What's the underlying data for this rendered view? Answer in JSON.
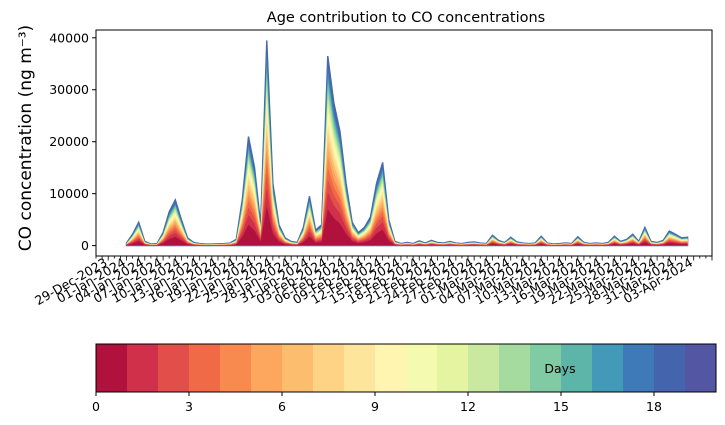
{
  "chart_data": {
    "type": "area",
    "title": "Age contribution to CO concentrations",
    "ylabel": "CO concentration (ng m⁻³)",
    "xlabel": "",
    "ylim": [
      -2000,
      41500
    ],
    "yticks": [
      0,
      10000,
      20000,
      30000,
      40000
    ],
    "ytick_labels": [
      "0",
      "10000",
      "20000",
      "30000",
      "40000"
    ],
    "x_start": "2023-12-27",
    "x_end": "2024-04-06",
    "x_data_start": "2024-01-01",
    "x_data_end": "2024-04-02",
    "xtick_labels": [
      "29-Dec-2023",
      "01-Jan-2024",
      "04-Jan-2024",
      "07-Jan-2024",
      "10-Jan-2024",
      "13-Jan-2024",
      "16-Jan-2024",
      "19-Jan-2024",
      "22-Jan-2024",
      "25-Jan-2024",
      "28-Jan-2024",
      "31-Jan-2024",
      "03-Feb-2024",
      "06-Feb-2024",
      "09-Feb-2024",
      "12-Feb-2024",
      "15-Feb-2024",
      "18-Feb-2024",
      "21-Feb-2024",
      "24-Feb-2024",
      "27-Feb-2024",
      "01-Mar-2024",
      "04-Mar-2024",
      "07-Mar-2024",
      "10-Mar-2024",
      "13-Mar-2024",
      "16-Mar-2024",
      "19-Mar-2024",
      "22-Mar-2024",
      "25-Mar-2024",
      "28-Mar-2024",
      "31-Mar-2024",
      "03-Apr-2024"
    ],
    "total_concentration": [
      [
        "2024-01-01",
        500
      ],
      [
        "2024-01-02",
        2200
      ],
      [
        "2024-01-03",
        4500
      ],
      [
        "2024-01-04",
        800
      ],
      [
        "2024-01-05",
        300
      ],
      [
        "2024-01-06",
        400
      ],
      [
        "2024-01-07",
        2500
      ],
      [
        "2024-01-08",
        6500
      ],
      [
        "2024-01-09",
        8800
      ],
      [
        "2024-01-10",
        5000
      ],
      [
        "2024-01-11",
        1500
      ],
      [
        "2024-01-12",
        600
      ],
      [
        "2024-01-13",
        400
      ],
      [
        "2024-01-14",
        300
      ],
      [
        "2024-01-15",
        300
      ],
      [
        "2024-01-16",
        350
      ],
      [
        "2024-01-17",
        400
      ],
      [
        "2024-01-18",
        500
      ],
      [
        "2024-01-19",
        1200
      ],
      [
        "2024-01-20",
        9000
      ],
      [
        "2024-01-21",
        21000
      ],
      [
        "2024-01-22",
        15000
      ],
      [
        "2024-01-23",
        4000
      ],
      [
        "2024-01-24",
        39500
      ],
      [
        "2024-01-25",
        12000
      ],
      [
        "2024-01-26",
        4000
      ],
      [
        "2024-01-27",
        1500
      ],
      [
        "2024-01-28",
        800
      ],
      [
        "2024-01-29",
        600
      ],
      [
        "2024-01-30",
        3500
      ],
      [
        "2024-01-31",
        9500
      ],
      [
        "2024-02-01",
        3000
      ],
      [
        "2024-02-02",
        4000
      ],
      [
        "2024-02-03",
        36500
      ],
      [
        "2024-02-04",
        27500
      ],
      [
        "2024-02-05",
        22000
      ],
      [
        "2024-02-06",
        12000
      ],
      [
        "2024-02-07",
        4500
      ],
      [
        "2024-02-08",
        2500
      ],
      [
        "2024-02-09",
        3500
      ],
      [
        "2024-02-10",
        5500
      ],
      [
        "2024-02-11",
        12000
      ],
      [
        "2024-02-12",
        16000
      ],
      [
        "2024-02-13",
        5000
      ],
      [
        "2024-02-14",
        800
      ],
      [
        "2024-02-15",
        400
      ],
      [
        "2024-02-16",
        600
      ],
      [
        "2024-02-17",
        400
      ],
      [
        "2024-02-18",
        900
      ],
      [
        "2024-02-19",
        500
      ],
      [
        "2024-02-20",
        1000
      ],
      [
        "2024-02-21",
        600
      ],
      [
        "2024-02-22",
        500
      ],
      [
        "2024-02-23",
        800
      ],
      [
        "2024-02-24",
        500
      ],
      [
        "2024-02-25",
        400
      ],
      [
        "2024-02-26",
        600
      ],
      [
        "2024-02-27",
        700
      ],
      [
        "2024-02-28",
        500
      ],
      [
        "2024-02-29",
        400
      ],
      [
        "2024-03-01",
        2000
      ],
      [
        "2024-03-02",
        1000
      ],
      [
        "2024-03-03",
        600
      ],
      [
        "2024-03-04",
        1600
      ],
      [
        "2024-03-05",
        700
      ],
      [
        "2024-03-06",
        500
      ],
      [
        "2024-03-07",
        400
      ],
      [
        "2024-03-08",
        500
      ],
      [
        "2024-03-09",
        1800
      ],
      [
        "2024-03-10",
        500
      ],
      [
        "2024-03-11",
        300
      ],
      [
        "2024-03-12",
        400
      ],
      [
        "2024-03-13",
        500
      ],
      [
        "2024-03-14",
        400
      ],
      [
        "2024-03-15",
        1700
      ],
      [
        "2024-03-16",
        600
      ],
      [
        "2024-03-17",
        400
      ],
      [
        "2024-03-18",
        500
      ],
      [
        "2024-03-19",
        400
      ],
      [
        "2024-03-20",
        600
      ],
      [
        "2024-03-21",
        1800
      ],
      [
        "2024-03-22",
        800
      ],
      [
        "2024-03-23",
        1200
      ],
      [
        "2024-03-24",
        2200
      ],
      [
        "2024-03-25",
        800
      ],
      [
        "2024-03-26",
        3500
      ],
      [
        "2024-03-27",
        800
      ],
      [
        "2024-03-28",
        600
      ],
      [
        "2024-03-29",
        1000
      ],
      [
        "2024-03-30",
        2800
      ],
      [
        "2024-03-31",
        2200
      ],
      [
        "2024-04-01",
        1500
      ],
      [
        "2024-04-02",
        1600
      ]
    ],
    "stack_colors": [
      "#b0123d",
      "#d0304a",
      "#e24f4a",
      "#f16a47",
      "#f98a4f",
      "#fca65e",
      "#fdbd6e",
      "#fed386",
      "#fee59c",
      "#fff5b0",
      "#f4fab0",
      "#e4f4a0",
      "#c8e99f",
      "#a6db9f",
      "#80cba4",
      "#5db5a9",
      "#4399b8",
      "#3e7ab7",
      "#4465ad",
      "#5356a2"
    ],
    "colorbar": {
      "label": "Days",
      "min": 0,
      "max": 20,
      "ticks": [
        0,
        3,
        6,
        9,
        12,
        15,
        18
      ],
      "tick_labels": [
        "0",
        "3",
        "6",
        "9",
        "12",
        "15",
        "18"
      ]
    }
  }
}
